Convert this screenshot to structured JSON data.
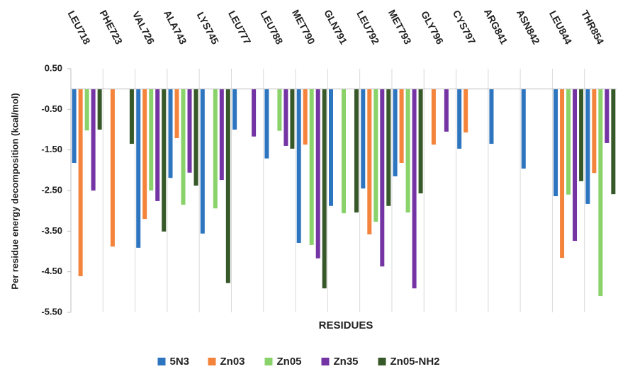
{
  "chart_data": {
    "type": "bar",
    "x_label": "RESIDUES",
    "y_label": "Per residue energy decomposition (kcal/mol)",
    "categories": [
      "LEU718",
      "PHE723",
      "VAL726",
      "ALA743",
      "LYS745",
      "LEU777",
      "LEU788",
      "MET790",
      "GLN791",
      "LEU792",
      "MET793",
      "GLY796",
      "CYS797",
      "ARG841",
      "ASN842",
      "LEU844",
      "THR854"
    ],
    "series": [
      {
        "name": "5N3",
        "color": "#2e75c0",
        "values": [
          -1.82,
          null,
          -3.91,
          -2.19,
          -3.56,
          -1.0,
          -1.71,
          -3.79,
          -2.88,
          -2.45,
          -2.15,
          null,
          -1.47,
          -1.35,
          -1.96,
          -2.64,
          -2.83
        ]
      },
      {
        "name": "Zn03",
        "color": "#f4843c",
        "values": [
          -4.61,
          -3.88,
          -3.2,
          -1.21,
          null,
          null,
          null,
          -1.37,
          null,
          -3.58,
          -1.82,
          -1.37,
          -1.07,
          null,
          null,
          -4.16,
          -2.07
        ]
      },
      {
        "name": "Zn05",
        "color": "#8ad36a",
        "values": [
          -1.02,
          null,
          -2.5,
          -2.85,
          -2.94,
          null,
          -1.03,
          -3.84,
          -3.06,
          -3.27,
          -3.04,
          null,
          null,
          null,
          null,
          -2.6,
          -5.1
        ]
      },
      {
        "name": "Zn35",
        "color": "#7434a4",
        "values": [
          -2.5,
          null,
          -2.76,
          -2.06,
          -2.24,
          -1.17,
          -1.4,
          -4.17,
          null,
          -4.37,
          -4.91,
          -1.05,
          null,
          null,
          null,
          -3.74,
          -1.33
        ]
      },
      {
        "name": "Zn05-NH2",
        "color": "#37592a",
        "values": [
          -1.0,
          -1.35,
          -3.51,
          -2.38,
          -4.78,
          null,
          -1.47,
          -4.91,
          -3.04,
          -2.88,
          -2.57,
          null,
          null,
          null,
          null,
          -2.27,
          -2.59
        ]
      }
    ],
    "ylim": [
      -5.5,
      0.5
    ],
    "yticks": [
      {
        "value": 0.5,
        "label": "0.50"
      },
      {
        "value": -0.5,
        "label": "-0.50"
      },
      {
        "value": -1.5,
        "label": "-1.50"
      },
      {
        "value": -2.5,
        "label": "-2.50"
      },
      {
        "value": -3.5,
        "label": "-3.50"
      },
      {
        "value": -4.5,
        "label": "-4.50"
      },
      {
        "value": -5.5,
        "label": "-5.50"
      }
    ],
    "legend": "bottom"
  }
}
